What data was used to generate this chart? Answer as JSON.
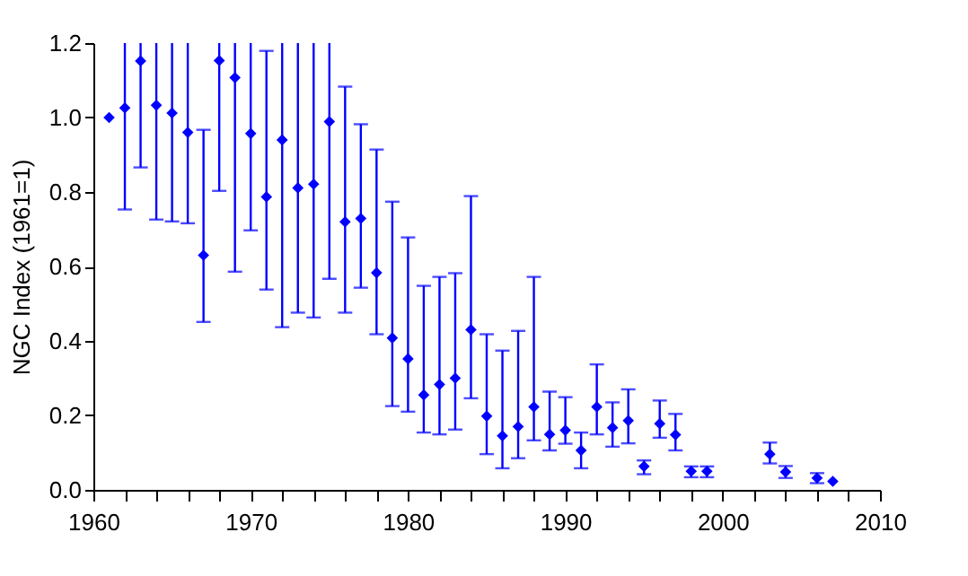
{
  "chart_data": {
    "type": "scatter",
    "ylabel": "NGC Index (1961=1)",
    "x": [
      1961,
      1962,
      1963,
      1964,
      1965,
      1966,
      1967,
      1968,
      1969,
      1970,
      1971,
      1972,
      1973,
      1974,
      1975,
      1976,
      1977,
      1978,
      1979,
      1980,
      1981,
      1982,
      1983,
      1984,
      1985,
      1986,
      1987,
      1988,
      1989,
      1990,
      1991,
      1992,
      1993,
      1994,
      1995,
      1996,
      1997,
      1998,
      1999,
      2003,
      2004,
      2006,
      2007
    ],
    "series": [
      {
        "color": "#0000ff",
        "values": [
          1.0,
          1.026,
          1.152,
          1.033,
          1.012,
          0.96,
          0.63,
          1.153,
          1.107,
          0.957,
          0.787,
          0.94,
          0.811,
          0.821,
          0.989,
          0.72,
          0.729,
          0.583,
          0.408,
          0.352,
          0.255,
          0.283,
          0.3,
          0.43,
          0.198,
          0.145,
          0.17,
          0.223,
          0.149,
          0.16,
          0.106,
          0.223,
          0.167,
          0.186,
          0.063,
          0.178,
          0.148,
          0.05,
          0.05,
          0.096,
          0.048,
          0.032,
          0.023
        ],
        "errors": [
          null,
          [
            0.753,
            1.2
          ],
          [
            0.866,
            1.2
          ],
          [
            0.726,
            1.2
          ],
          [
            0.721,
            1.2
          ],
          [
            0.716,
            1.2
          ],
          [
            0.451,
            0.967
          ],
          [
            0.803,
            1.2
          ],
          [
            0.586,
            1.2
          ],
          [
            0.697,
            1.2
          ],
          [
            0.538,
            1.179
          ],
          [
            0.437,
            1.2
          ],
          [
            0.476,
            1.2
          ],
          [
            0.463,
            1.2
          ],
          [
            0.567,
            1.2
          ],
          [
            0.476,
            1.083
          ],
          [
            0.543,
            0.982
          ],
          [
            0.418,
            0.914
          ],
          [
            0.225,
            0.774
          ],
          [
            0.21,
            0.678
          ],
          [
            0.154,
            0.548
          ],
          [
            0.149,
            0.572
          ],
          [
            0.162,
            0.582
          ],
          [
            0.246,
            0.789
          ],
          [
            0.096,
            0.418
          ],
          [
            0.058,
            0.374
          ],
          [
            0.085,
            0.427
          ],
          [
            0.133,
            0.572
          ],
          [
            0.106,
            0.264
          ],
          [
            0.124,
            0.249
          ],
          [
            0.058,
            0.154
          ],
          [
            0.149,
            0.337
          ],
          [
            0.116,
            0.235
          ],
          [
            0.125,
            0.27
          ],
          [
            0.042,
            0.079
          ],
          [
            0.14,
            0.24
          ],
          [
            0.106,
            0.204
          ],
          [
            0.034,
            0.063
          ],
          [
            0.034,
            0.063
          ],
          [
            0.071,
            0.127
          ],
          [
            0.032,
            0.064
          ],
          [
            0.018,
            0.045
          ],
          null
        ]
      }
    ],
    "marker": "diamond",
    "grid": false,
    "legend": false,
    "xlim": [
      1960,
      2010
    ],
    "xticks": [
      1960,
      {
        "value": 1962,
        "label": null
      },
      {
        "value": 1964,
        "label": null
      },
      {
        "value": 1966,
        "label": null
      },
      {
        "value": 1968,
        "label": null
      },
      1970,
      {
        "value": 1972,
        "label": null
      },
      {
        "value": 1974,
        "label": null
      },
      {
        "value": 1976,
        "label": null
      },
      {
        "value": 1978,
        "label": null
      },
      1980,
      {
        "value": 1982,
        "label": null
      },
      {
        "value": 1984,
        "label": null
      },
      {
        "value": 1986,
        "label": null
      },
      {
        "value": 1988,
        "label": null
      },
      1990,
      {
        "value": 1992,
        "label": null
      },
      {
        "value": 1994,
        "label": null
      },
      {
        "value": 1996,
        "label": null
      },
      {
        "value": 1998,
        "label": null
      },
      2000,
      {
        "value": 2002,
        "label": null
      },
      {
        "value": 2004,
        "label": null
      },
      {
        "value": 2006,
        "label": null
      },
      {
        "value": 2008,
        "label": null
      },
      2010
    ],
    "ylim": [
      0,
      1.2
    ],
    "yticks": [
      {
        "value": 0,
        "label": "0.0"
      },
      {
        "value": 0.2,
        "label": "0.2"
      },
      {
        "value": 0.4,
        "label": "0.4"
      },
      {
        "value": 0.6,
        "label": "0.6"
      },
      {
        "value": 0.8,
        "label": "0.8"
      },
      {
        "value": 1.0,
        "label": "1.0"
      },
      {
        "value": 1.2,
        "label": "1.2"
      }
    ]
  }
}
